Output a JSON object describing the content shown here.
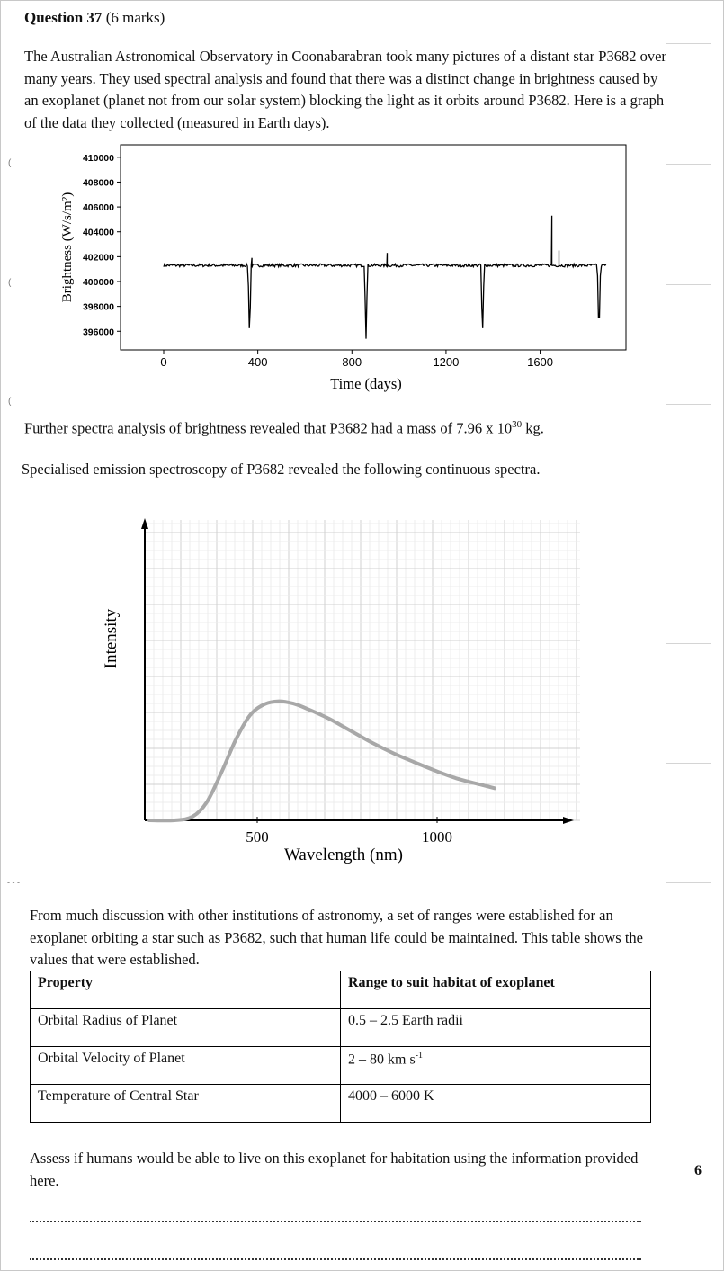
{
  "question": {
    "title": "Question 37",
    "marks": "(6 marks)"
  },
  "intro_text": "The Australian Astronomical Observatory in Coonabarabran took many pictures of a distant star P3682 over many years. They used spectral analysis and found that there was a distinct change in brightness caused by an exoplanet (planet not from our solar system) blocking the light as it orbits around P3682. Here is a graph of the data they collected (measured in Earth days).",
  "mass_text_before": "Further spectra analysis of brightness revealed that P3682 had a mass of 7.96 x 10",
  "mass_exponent": "30",
  "mass_text_after": " kg.",
  "spectra_text": "Specialised emission spectroscopy of P3682 revealed the following continuous spectra.",
  "ranges_intro": "From much discussion with other institutions of astronomy, a set of ranges were established for an exoplanet orbiting a star such as P3682, such that human life could be maintained. This table shows the values that were established.",
  "table": {
    "headers": [
      "Property",
      "Range to suit habitat of exoplanet"
    ],
    "rows": [
      {
        "property": "Orbital Radius of Planet",
        "range": "0.5 – 2.5 Earth radii",
        "range_sup": ""
      },
      {
        "property": "Orbital Velocity of Planet",
        "range": "2 – 80 km s",
        "range_sup": "-1"
      },
      {
        "property": "Temperature of Central Star",
        "range": "4000 – 6000 K",
        "range_sup": ""
      }
    ]
  },
  "assess_text": "Assess if humans would be able to live on this exoplanet for habitation using the information provided here.",
  "assess_marks": "6",
  "chart_data": [
    {
      "type": "line",
      "title": "",
      "xlabel": "Time (days)",
      "ylabel": "Brightness (W/s/m²)",
      "xlim": [
        0,
        1980
      ],
      "ylim": [
        394500,
        411000
      ],
      "x_ticks": [
        0,
        400,
        800,
        1200,
        1600
      ],
      "y_ticks": [
        396000,
        398000,
        400000,
        402000,
        404000,
        406000,
        408000,
        410000
      ],
      "x_tick_labels": [
        "0",
        "400",
        "800",
        "1200",
        "1600"
      ],
      "y_tick_labels": [
        "396000",
        "398000",
        "400000",
        "402000",
        "404000",
        "406000",
        "408000",
        "410000"
      ],
      "baseline": 401300,
      "noise": 120,
      "x_start": 0,
      "x_end": 1880,
      "dips": [
        {
          "x": 365,
          "min": 395400,
          "halfwidth": 7
        },
        {
          "x": 860,
          "min": 395400,
          "halfwidth": 7
        },
        {
          "x": 1355,
          "min": 395400,
          "halfwidth": 7
        },
        {
          "x": 1850,
          "min": 395400,
          "halfwidth": 7
        }
      ],
      "spikes": [
        {
          "x": 375,
          "y": 401900
        },
        {
          "x": 950,
          "y": 402300
        },
        {
          "x": 1650,
          "y": 405300
        },
        {
          "x": 1680,
          "y": 402500
        }
      ],
      "grid": false
    },
    {
      "type": "line",
      "title": "",
      "xlabel": "Wavelength (nm)",
      "ylabel": "Intensity",
      "xlim": [
        0,
        1190
      ],
      "ylim": [
        0,
        1
      ],
      "x_ticks": [
        500,
        1000
      ],
      "x_tick_labels": [
        "500",
        "1000"
      ],
      "grid": true,
      "x": [
        200,
        270,
        320,
        360,
        400,
        440,
        480,
        520,
        560,
        600,
        640,
        700,
        760,
        820,
        880,
        940,
        1000,
        1060,
        1120,
        1160
      ],
      "y": [
        0.0,
        0.0,
        0.01,
        0.05,
        0.13,
        0.22,
        0.288,
        0.318,
        0.326,
        0.32,
        0.305,
        0.278,
        0.245,
        0.212,
        0.183,
        0.158,
        0.134,
        0.113,
        0.098,
        0.088
      ]
    }
  ]
}
